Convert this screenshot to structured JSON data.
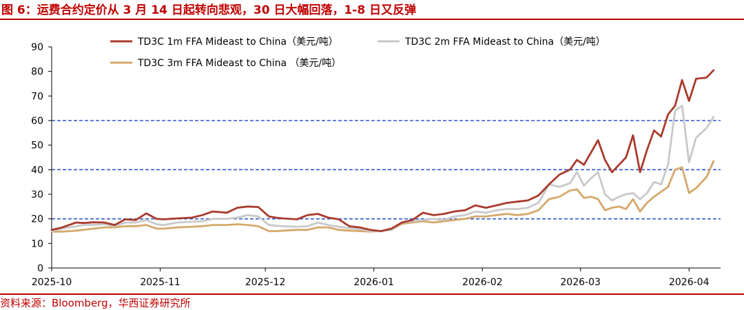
{
  "figure": {
    "title": "图 6：运费合约定价从 3 月 14 日起转向悲观，30 日大幅回落，1-8 日又反弹",
    "source": "资料来源：Bloomberg，华西证券研究所",
    "accent_color": "#c00000"
  },
  "chart_data": {
    "type": "line",
    "title": "",
    "xlabel": "",
    "ylabel": "",
    "ylim": [
      0,
      90
    ],
    "yticks": [
      0,
      10,
      20,
      30,
      40,
      50,
      60,
      70,
      80,
      90
    ],
    "xlim": [
      "2025-10-01",
      "2026-04-10"
    ],
    "xticks": [
      "2025-10",
      "2025-11",
      "2025-12",
      "2026-01",
      "2026-02",
      "2026-03",
      "2026-04"
    ],
    "grid": false,
    "legend": "top",
    "reference_lines": [
      {
        "y": 20,
        "color": "#2f55d4",
        "style": "dashed"
      },
      {
        "y": 40,
        "color": "#2f55d4",
        "style": "dashed"
      },
      {
        "y": 60,
        "color": "#2f55d4",
        "style": "dashed"
      }
    ],
    "series": [
      {
        "name": "TD3C 1m FFA Mideast to China（美元/吨）",
        "color": "#a93a2c",
        "x": [
          "2025-10-01",
          "2025-10-04",
          "2025-10-08",
          "2025-10-10",
          "2025-10-13",
          "2025-10-16",
          "2025-10-19",
          "2025-10-22",
          "2025-10-25",
          "2025-10-28",
          "2025-10-31",
          "2025-11-02",
          "2025-11-06",
          "2025-11-10",
          "2025-11-13",
          "2025-11-16",
          "2025-11-20",
          "2025-11-23",
          "2025-11-26",
          "2025-11-29",
          "2025-12-02",
          "2025-12-04",
          "2025-12-06",
          "2025-12-10",
          "2025-12-13",
          "2025-12-16",
          "2025-12-19",
          "2025-12-22",
          "2025-12-25",
          "2025-12-28",
          "2025-12-31",
          "2026-01-03",
          "2026-01-06",
          "2026-01-09",
          "2026-01-12",
          "2026-01-15",
          "2026-01-18",
          "2026-01-21",
          "2026-01-24",
          "2026-01-27",
          "2026-01-30",
          "2026-02-02",
          "2026-02-05",
          "2026-02-08",
          "2026-02-11",
          "2026-02-14",
          "2026-02-17",
          "2026-02-20",
          "2026-02-23",
          "2026-02-26",
          "2026-02-28",
          "2026-03-02",
          "2026-03-04",
          "2026-03-06",
          "2026-03-08",
          "2026-03-10",
          "2026-03-12",
          "2026-03-14",
          "2026-03-16",
          "2026-03-18",
          "2026-03-20",
          "2026-03-22",
          "2026-03-24",
          "2026-03-26",
          "2026-03-28",
          "2026-03-30",
          "2026-04-01",
          "2026-04-03",
          "2026-04-06",
          "2026-04-08"
        ],
        "values": [
          15.5,
          16.5,
          18.5,
          18.3,
          18.6,
          18.5,
          17.5,
          19.8,
          19.5,
          22.2,
          20.0,
          19.8,
          20.2,
          20.5,
          21.5,
          23.0,
          22.5,
          24.5,
          25.0,
          24.8,
          21.0,
          20.5,
          20.2,
          19.8,
          21.5,
          22.0,
          20.5,
          19.8,
          17.0,
          16.5,
          15.5,
          15.0,
          16.0,
          18.5,
          19.5,
          22.5,
          21.5,
          22.0,
          23.0,
          23.5,
          25.5,
          24.5,
          25.5,
          26.5,
          27.0,
          27.5,
          29.5,
          34.0,
          38.0,
          40.0,
          44.0,
          42.0,
          47.0,
          52.0,
          44.0,
          39.0,
          42.0,
          45.0,
          54.0,
          39.0,
          48.0,
          56.0,
          53.5,
          62.5,
          66.0,
          76.5,
          68.0,
          77.0,
          77.5,
          80.5
        ]
      },
      {
        "name": "TD3C 2m FFA Mideast to China（美元/吨）",
        "color": "#c8c8c8",
        "x": [
          "2025-10-01",
          "2025-10-04",
          "2025-10-08",
          "2025-10-10",
          "2025-10-13",
          "2025-10-16",
          "2025-10-19",
          "2025-10-22",
          "2025-10-25",
          "2025-10-28",
          "2025-10-31",
          "2025-11-02",
          "2025-11-06",
          "2025-11-10",
          "2025-11-13",
          "2025-11-16",
          "2025-11-20",
          "2025-11-23",
          "2025-11-26",
          "2025-11-29",
          "2025-12-02",
          "2025-12-04",
          "2025-12-06",
          "2025-12-10",
          "2025-12-13",
          "2025-12-16",
          "2025-12-19",
          "2025-12-22",
          "2025-12-25",
          "2025-12-28",
          "2025-12-31",
          "2026-01-03",
          "2026-01-06",
          "2026-01-09",
          "2026-01-12",
          "2026-01-15",
          "2026-01-18",
          "2026-01-21",
          "2026-01-24",
          "2026-01-27",
          "2026-01-30",
          "2026-02-02",
          "2026-02-05",
          "2026-02-08",
          "2026-02-11",
          "2026-02-14",
          "2026-02-17",
          "2026-02-20",
          "2026-02-23",
          "2026-02-26",
          "2026-02-28",
          "2026-03-02",
          "2026-03-04",
          "2026-03-06",
          "2026-03-08",
          "2026-03-10",
          "2026-03-12",
          "2026-03-14",
          "2026-03-16",
          "2026-03-18",
          "2026-03-20",
          "2026-03-22",
          "2026-03-24",
          "2026-03-26",
          "2026-03-28",
          "2026-03-30",
          "2026-04-01",
          "2026-04-03",
          "2026-04-06",
          "2026-04-08"
        ],
        "values": [
          15.0,
          16.0,
          17.0,
          17.5,
          17.5,
          17.8,
          17.0,
          18.5,
          18.5,
          19.5,
          17.8,
          17.5,
          18.5,
          18.8,
          19.0,
          20.0,
          20.0,
          20.5,
          21.5,
          21.0,
          17.5,
          17.2,
          17.0,
          16.8,
          17.0,
          18.5,
          17.5,
          16.8,
          16.2,
          15.8,
          15.0,
          15.0,
          15.5,
          18.5,
          19.0,
          19.5,
          20.0,
          19.5,
          21.0,
          21.5,
          23.0,
          22.5,
          23.5,
          24.0,
          24.0,
          24.5,
          26.5,
          34.0,
          33.0,
          34.5,
          39.0,
          33.5,
          36.5,
          39.0,
          30.0,
          27.5,
          29.0,
          30.0,
          30.5,
          28.0,
          30.5,
          35.0,
          34.0,
          42.0,
          64.0,
          66.0,
          43.0,
          53.0,
          57.0,
          61.5
        ]
      },
      {
        "name": "TD3C 3m FFA Mideast to China （美元/吨）",
        "color": "#d4a86a",
        "x": [
          "2025-10-01",
          "2025-10-04",
          "2025-10-08",
          "2025-10-10",
          "2025-10-13",
          "2025-10-16",
          "2025-10-19",
          "2025-10-22",
          "2025-10-25",
          "2025-10-28",
          "2025-10-31",
          "2025-11-02",
          "2025-11-06",
          "2025-11-10",
          "2025-11-13",
          "2025-11-16",
          "2025-11-20",
          "2025-11-23",
          "2025-11-26",
          "2025-11-29",
          "2025-12-02",
          "2025-12-04",
          "2025-12-06",
          "2025-12-10",
          "2025-12-13",
          "2025-12-16",
          "2025-12-19",
          "2025-12-22",
          "2025-12-25",
          "2025-12-28",
          "2025-12-31",
          "2026-01-03",
          "2026-01-06",
          "2026-01-09",
          "2026-01-12",
          "2026-01-15",
          "2026-01-18",
          "2026-01-21",
          "2026-01-24",
          "2026-01-27",
          "2026-01-30",
          "2026-02-02",
          "2026-02-05",
          "2026-02-08",
          "2026-02-11",
          "2026-02-14",
          "2026-02-17",
          "2026-02-20",
          "2026-02-23",
          "2026-02-26",
          "2026-02-28",
          "2026-03-02",
          "2026-03-04",
          "2026-03-06",
          "2026-03-08",
          "2026-03-10",
          "2026-03-12",
          "2026-03-14",
          "2026-03-16",
          "2026-03-18",
          "2026-03-20",
          "2026-03-22",
          "2026-03-24",
          "2026-03-26",
          "2026-03-28",
          "2026-03-30",
          "2026-04-01",
          "2026-04-03",
          "2026-04-06",
          "2026-04-08"
        ],
        "values": [
          14.8,
          14.8,
          15.2,
          15.5,
          16.0,
          16.5,
          16.5,
          17.0,
          17.0,
          17.5,
          16.0,
          16.0,
          16.5,
          16.8,
          17.0,
          17.5,
          17.5,
          17.8,
          17.5,
          17.0,
          15.0,
          15.0,
          15.2,
          15.5,
          15.5,
          16.5,
          16.5,
          15.5,
          15.2,
          15.0,
          14.8,
          15.0,
          15.5,
          18.0,
          18.5,
          19.0,
          18.5,
          19.0,
          19.5,
          20.0,
          21.0,
          21.0,
          21.5,
          22.0,
          21.5,
          22.0,
          23.5,
          28.0,
          29.0,
          31.5,
          32.0,
          28.5,
          29.0,
          28.0,
          23.5,
          24.5,
          25.0,
          24.0,
          28.0,
          23.0,
          26.5,
          29.0,
          31.0,
          33.0,
          40.0,
          41.0,
          30.5,
          32.5,
          37.0,
          43.5
        ]
      }
    ]
  }
}
